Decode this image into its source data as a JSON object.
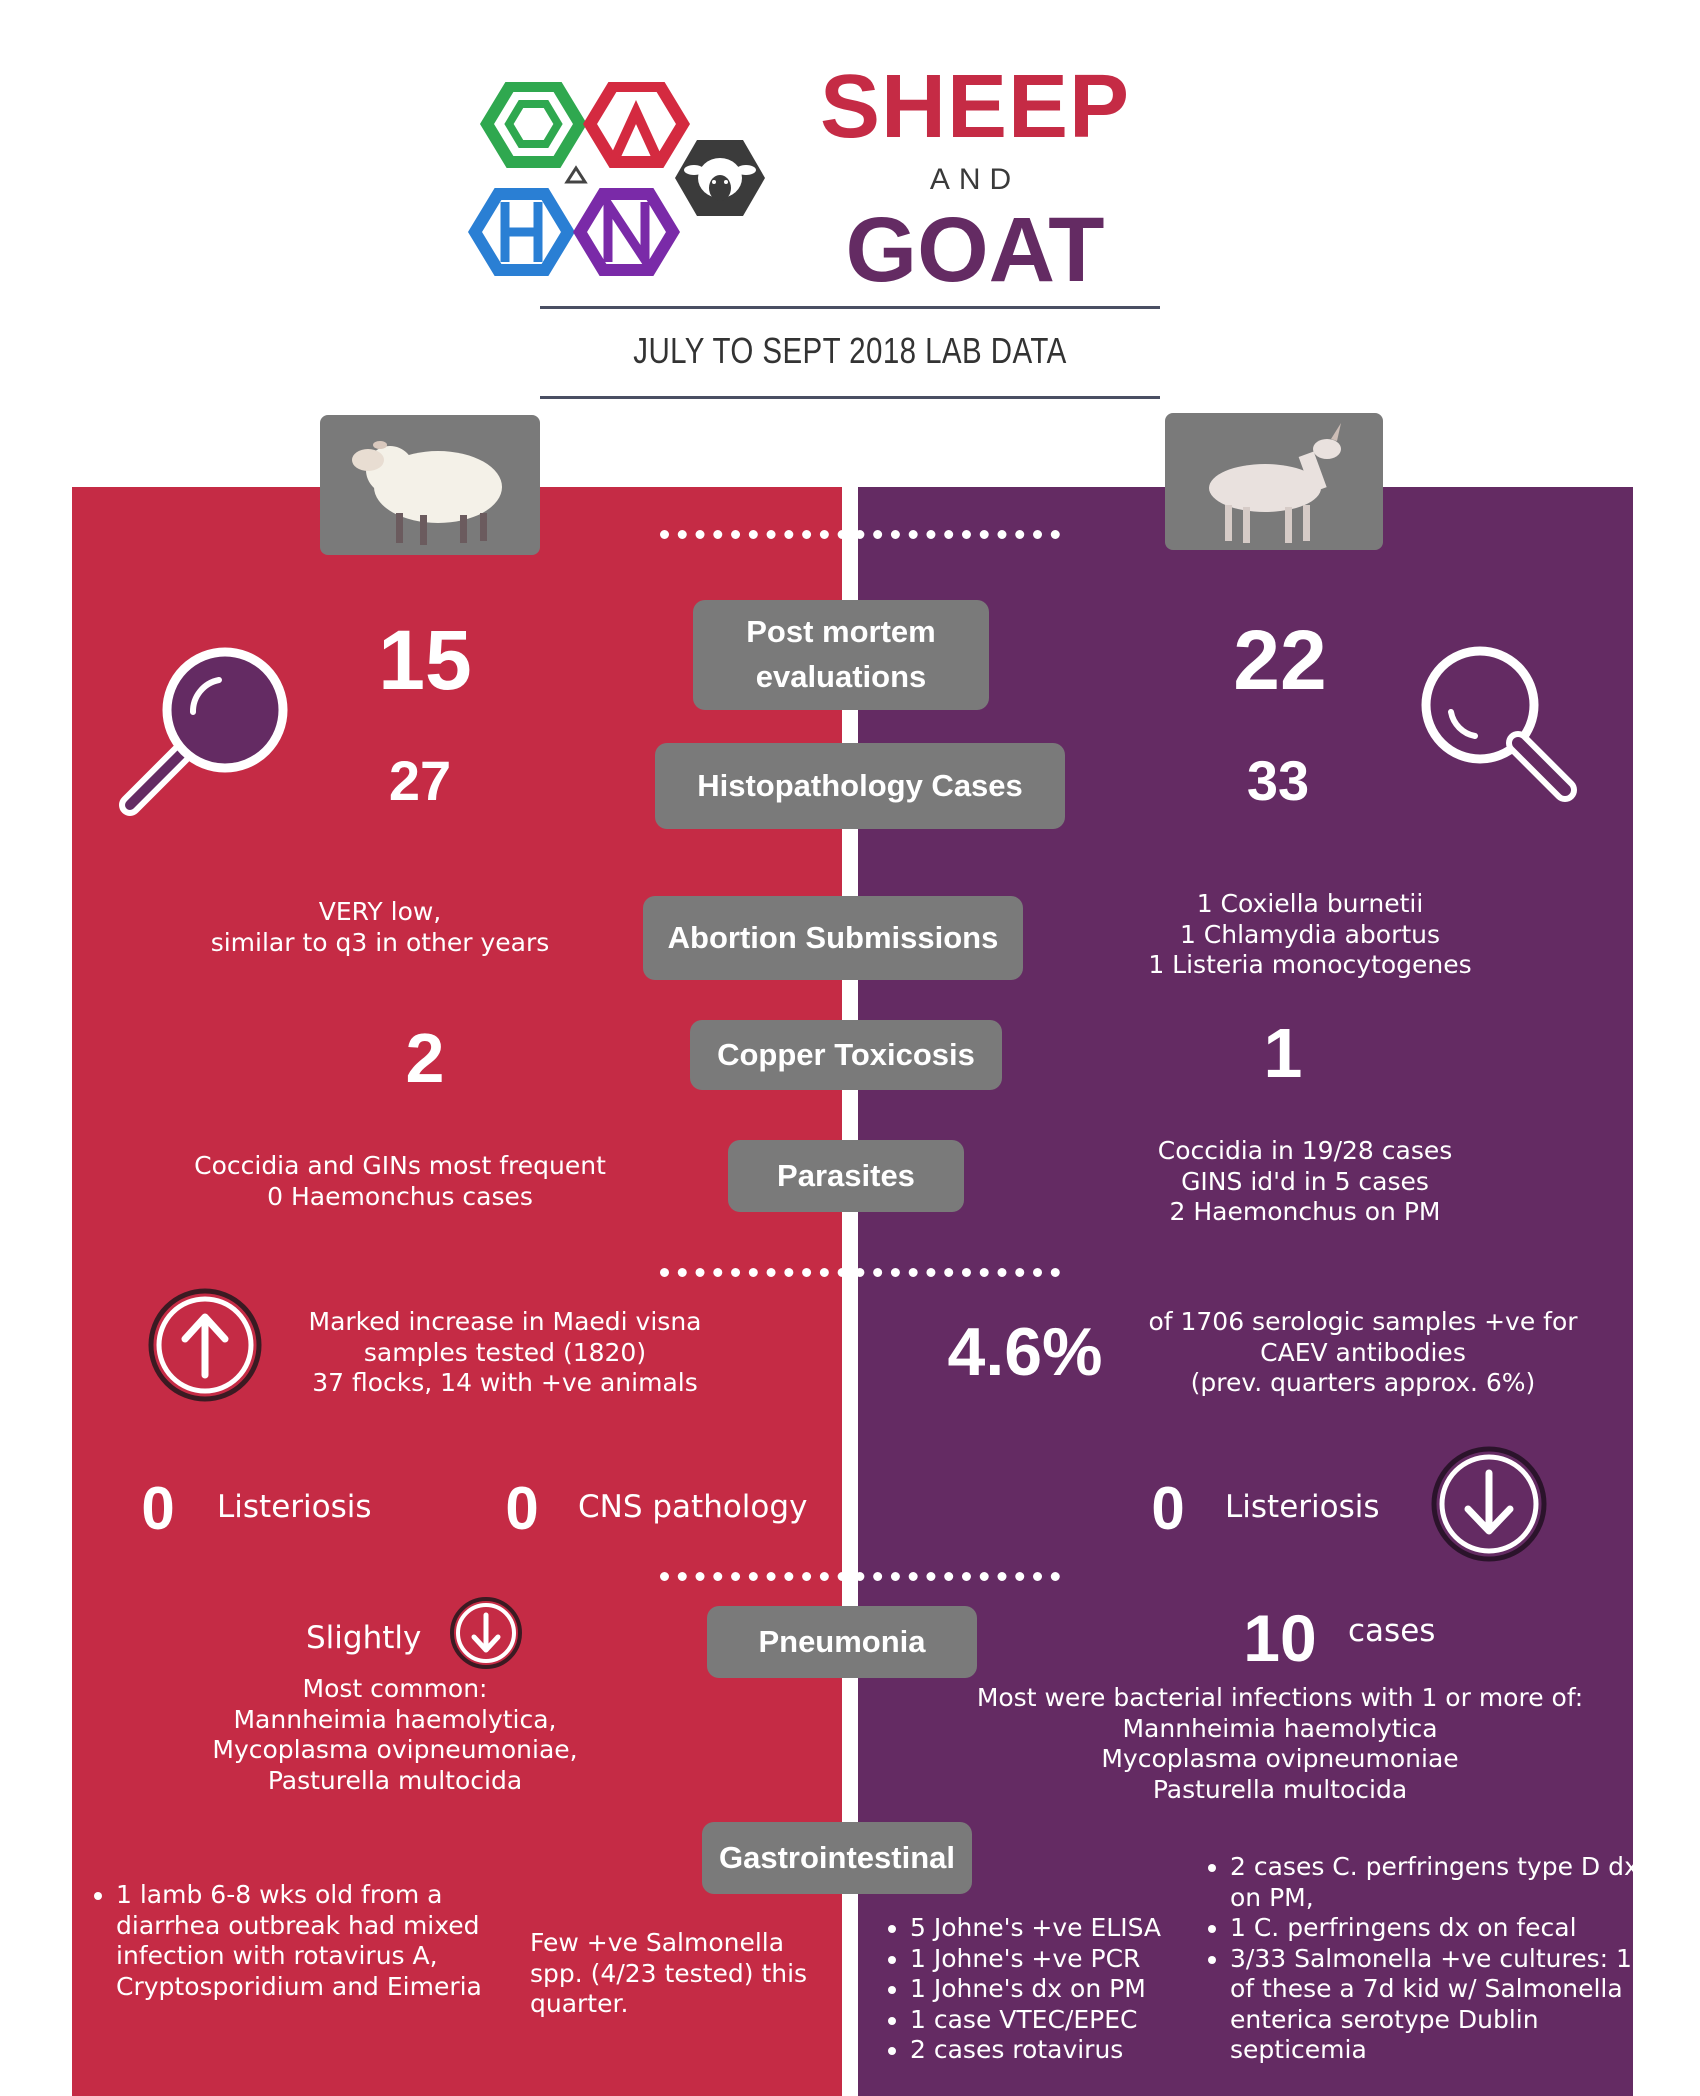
{
  "header": {
    "title_line1": "SHEEP",
    "title_and": "AND",
    "title_line2": "GOAT",
    "subtitle": "JULY TO SEPT 2018 LAB DATA",
    "brand_colors": {
      "sheep_red": "#c52b45",
      "goat_purple": "#642b63",
      "label_gray": "#7a7a7a"
    }
  },
  "icons": {
    "logo": "hexagon-letters-logo",
    "sheep_head": "sheep-head-hexagon-icon",
    "sheep_photo": "sheep-icon",
    "goat_photo": "goat-icon",
    "magnifier_left": "magnifying-glass-icon",
    "magnifier_right": "magnifying-glass-icon",
    "up_arrow": "arrow-up-circle-icon",
    "down_arrow_goat": "arrow-down-circle-icon",
    "down_arrow_small": "arrow-down-circle-icon"
  },
  "categories": {
    "post_mortem": [
      "Post mortem",
      "evaluations"
    ],
    "histopathology": "Histopathology Cases",
    "abortion": "Abortion Submissions",
    "copper": "Copper Toxicosis",
    "parasites": "Parasites",
    "pneumonia": "Pneumonia",
    "gastrointestinal": "Gastrointestinal"
  },
  "sheep": {
    "post_mortem": "15",
    "histopathology": "27",
    "abortion": [
      "VERY low,",
      "similar to q3 in other years"
    ],
    "copper": "2",
    "parasites": [
      "Coccidia and GINs most frequent",
      "0 Haemonchus cases"
    ],
    "maedi_visna": [
      "Marked increase in  Maedi visna",
      "samples tested (1820)",
      "37 flocks, 14 with +ve animals"
    ],
    "listeriosis_count": "0",
    "listeriosis_label": "Listeriosis",
    "cns_count": "0",
    "cns_label": "CNS pathology",
    "pneumonia_trend": "Slightly",
    "pneumonia_detail": [
      "Most common:",
      "Mannheimia haemolytica,",
      "Mycoplasma ovipneumoniae,",
      "Pasturella multocida"
    ],
    "gi_bullet": "1 lamb 6-8 wks old from a diarrhea outbreak had mixed infection with rotavirus A, Cryptosporidium and Eimeria",
    "gi_salmonella": "Few +ve Salmonella spp. (4/23 tested) this quarter."
  },
  "goat": {
    "post_mortem": "22",
    "histopathology": "33",
    "abortion": [
      "1 Coxiella burnetii",
      "1 Chlamydia abortus",
      "1 Listeria monocytogenes"
    ],
    "copper": "1",
    "parasites": [
      "Coccidia in 19/28 cases",
      "GINS id'd in 5 cases",
      "2 Haemonchus on PM"
    ],
    "caev_percent": "4.6%",
    "caev_text": [
      "of 1706 serologic samples +ve for",
      "CAEV antibodies",
      "(prev. quarters approx. 6%)"
    ],
    "listeriosis_count": "0",
    "listeriosis_label": "Listeriosis",
    "pneumonia_count": "10",
    "pneumonia_unit": "cases",
    "pneumonia_detail": [
      "Most were bacterial infections with 1 or more of:",
      "Mannheimia haemolytica",
      "Mycoplasma ovipneumoniae",
      "Pasturella multocida"
    ],
    "gi_list_left": [
      "5 Johne's +ve ELISA",
      "1 Johne's +ve PCR",
      "1 Johne's dx on PM",
      "1  case VTEC/EPEC",
      "2 cases rotavirus"
    ],
    "gi_list_right": [
      "2 cases C. perfringens type D dx on PM,",
      "1 C. perfringens dx on fecal",
      "3/33 Salmonella +ve cultures: 1 of these a 7d kid w/ Salmonella enterica serotype Dublin septicemia"
    ]
  }
}
